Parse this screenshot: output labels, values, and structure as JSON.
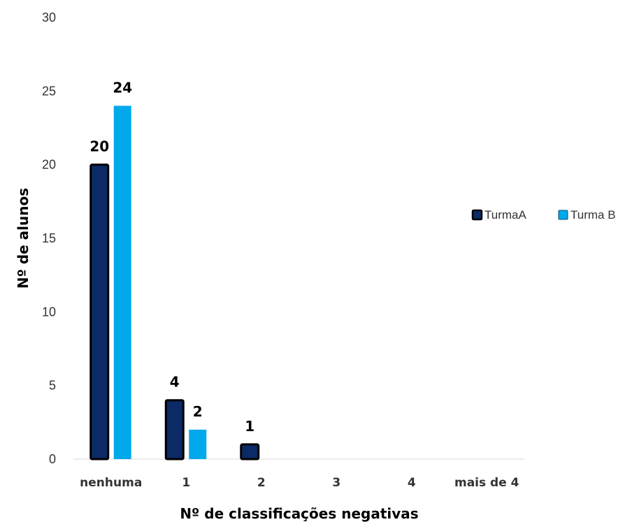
{
  "chart_data": {
    "type": "bar",
    "title": "",
    "xlabel": "Nº de classificações negativas",
    "ylabel": "Nº de alunos",
    "categories": [
      "nenhuma",
      "1",
      "2",
      "3",
      "4",
      "mais de 4"
    ],
    "series": [
      {
        "name": "TurmaA",
        "values": [
          20,
          4,
          1,
          0,
          0,
          0
        ],
        "labels": [
          "20",
          "4",
          "1",
          "",
          "",
          ""
        ]
      },
      {
        "name": "Turma B",
        "values": [
          24,
          2,
          0,
          0,
          0,
          0
        ],
        "labels": [
          "24",
          "2",
          "",
          "",
          "",
          ""
        ]
      }
    ],
    "ylim": [
      0,
      30
    ],
    "yticks": [
      "0",
      "5",
      "10",
      "15",
      "20",
      "25",
      "30"
    ],
    "grid": false,
    "legend_position": "right",
    "colors": {
      "TurmaA": "#0b2a66",
      "TurmaA_border": "#000000",
      "Turma B": "#00a8ec",
      "baseline": "#d9d9d9"
    }
  }
}
